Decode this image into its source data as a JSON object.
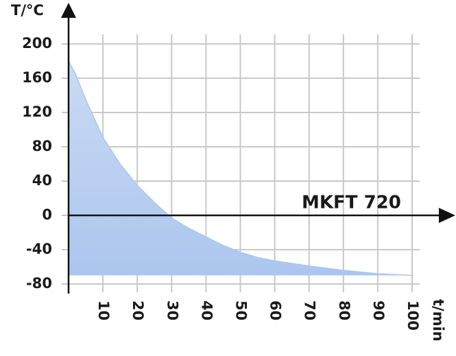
{
  "chart_data": {
    "type": "area",
    "y_label": "T/°C",
    "x_label": "t/min",
    "annotation": "MKFT 720",
    "x": [
      0,
      2,
      5,
      10,
      15,
      20,
      25,
      30,
      35,
      40,
      45,
      50,
      55,
      60,
      70,
      80,
      90,
      100
    ],
    "values": [
      180,
      165,
      135,
      91,
      60,
      35,
      15,
      -3,
      -15,
      -25,
      -35,
      -43,
      -49,
      -53,
      -59,
      -64,
      -68,
      -70
    ],
    "color": "#adc6ee",
    "xlim": [
      0,
      100
    ],
    "ylim": [
      -80,
      200
    ],
    "xticks": [
      10,
      20,
      30,
      40,
      50,
      60,
      70,
      80,
      90,
      100
    ],
    "yticks": [
      -80,
      -40,
      0,
      40,
      80,
      120,
      160,
      200
    ],
    "grid": true
  }
}
